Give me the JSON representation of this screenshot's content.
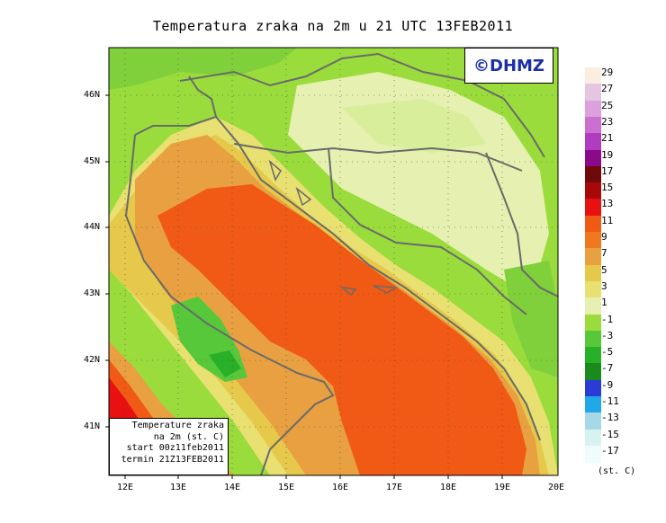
{
  "title": "Temperatura zraka na 2m u 21 UTC 13FEB2011",
  "watermark": "©DHMZ",
  "info_box": {
    "line1": "Temperature zraka",
    "line2": "na 2m (st. C)",
    "line3": "start 00z11feb2011",
    "line4": "termin 21Z13FEB2011"
  },
  "lat_labels": [
    "46N",
    "45N",
    "44N",
    "43N",
    "42N",
    "41N"
  ],
  "lon_labels": [
    "12E",
    "13E",
    "14E",
    "15E",
    "16E",
    "17E",
    "18E",
    "19E",
    "20E"
  ],
  "legend": {
    "labels": [
      "29",
      "27",
      "25",
      "23",
      "21",
      "19",
      "17",
      "15",
      "13",
      "11",
      "9",
      "7",
      "5",
      "3",
      "1",
      "-1",
      "-3",
      "-5",
      "-7",
      "-9",
      "-11",
      "-13",
      "-15",
      "-17"
    ],
    "colors": [
      "#fbeee0",
      "#e4c6e0",
      "#dca0dc",
      "#cc6fd0",
      "#b03cc0",
      "#8a0a8a",
      "#6e0a0a",
      "#a80808",
      "#e81010",
      "#f05a14",
      "#f07820",
      "#e8a040",
      "#e6c84a",
      "#e8e070",
      "#e6f0b0",
      "#9adc3c",
      "#56c83a",
      "#28b028",
      "#1a8a1a",
      "#2a3cd8",
      "#20a8e8",
      "#a6d8e8",
      "#d8f2f2",
      "#f0fcfc"
    ],
    "unit": "(st. C)"
  }
}
